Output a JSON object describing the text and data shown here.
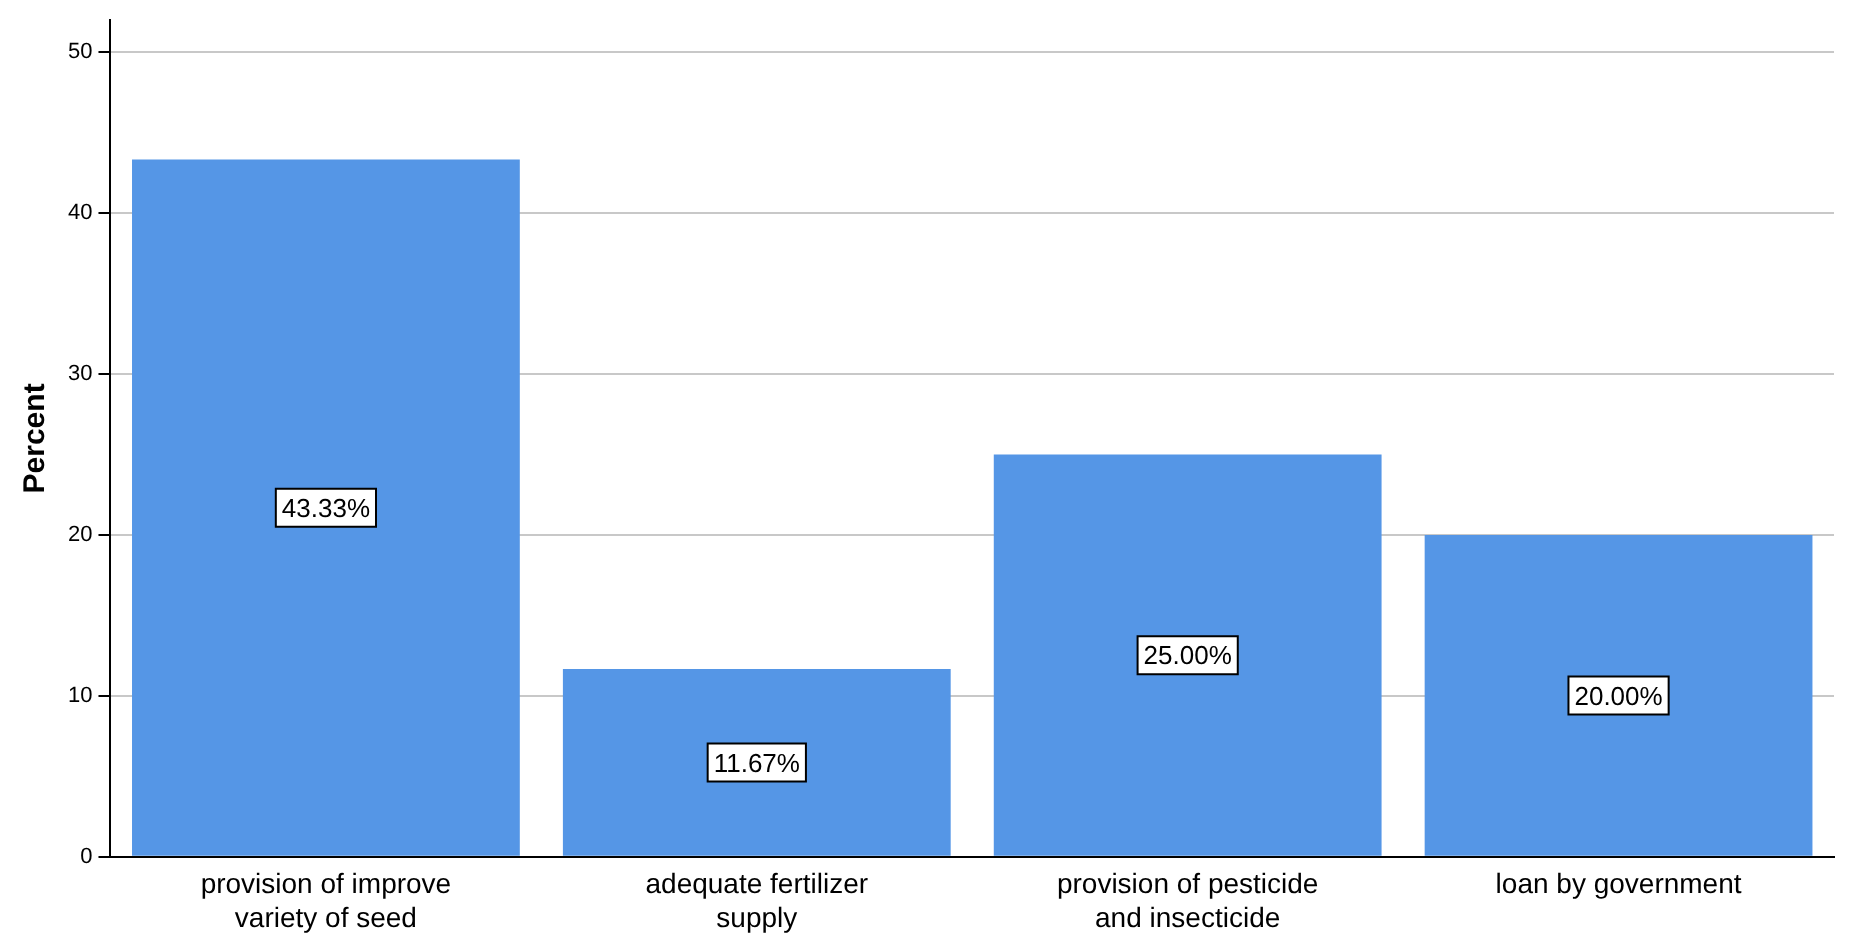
{
  "chart_data": {
    "type": "bar",
    "ylabel": "Percent",
    "categories": [
      "provision of improve variety of seed",
      "adequate fertilizer supply",
      "provision of pesticide and insecticide",
      "loan by government"
    ],
    "values": [
      43.33,
      11.67,
      25.0,
      20.0
    ],
    "value_labels": [
      "43.33%",
      "11.67%",
      "25.00%",
      "20.00%"
    ],
    "color": "#5596e6",
    "ylim": [
      0,
      52
    ],
    "yticks": [
      0,
      10,
      20,
      30,
      40,
      50
    ],
    "grid": "y",
    "legend": false
  }
}
